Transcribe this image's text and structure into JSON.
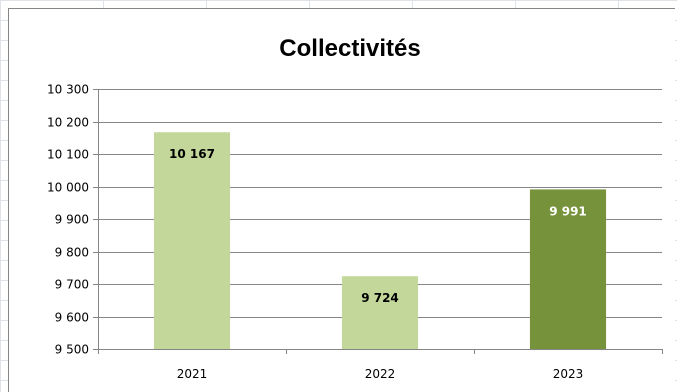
{
  "chart_data": {
    "type": "bar",
    "title": "Collectivités",
    "categories": [
      "2021",
      "2022",
      "2023"
    ],
    "values": [
      10167,
      9724,
      9991
    ],
    "value_labels": [
      "10 167",
      "9 724",
      "9 991"
    ],
    "bar_colors": [
      "#c4d79b",
      "#c4d79b",
      "#76933c"
    ],
    "label_colors": [
      "#000000",
      "#000000",
      "#ffffff"
    ],
    "ylim": [
      9500,
      10300
    ],
    "yticks": [
      9500,
      9600,
      9700,
      9800,
      9900,
      10000,
      10100,
      10200,
      10300
    ],
    "ytick_labels": [
      "9 500",
      "9 600",
      "9 700",
      "9 800",
      "9 900",
      "10 000",
      "10 100",
      "10 200",
      "10 300"
    ],
    "grid": true,
    "legend": "none"
  }
}
